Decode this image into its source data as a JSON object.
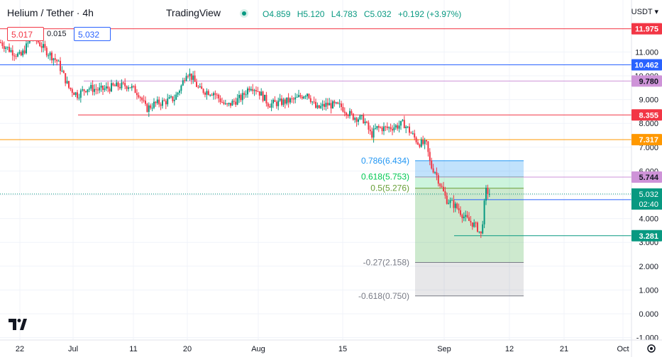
{
  "header": {
    "symbol": "Helium / Tether · 4h",
    "exchange": "TradingView",
    "status_color": "#089981",
    "open": "O4.859",
    "high": "H5.120",
    "low": "L4.783",
    "close": "C5.032",
    "change": "+0.192 (+3.97%)",
    "sell_price": "5.017",
    "spread": "0.015",
    "buy_price": "5.032"
  },
  "chart_data": {
    "type": "candlestick",
    "currency": "USDT",
    "x_ticks": [
      "22",
      "Jul",
      "11",
      "20",
      "Aug",
      "15",
      "Sep",
      "12",
      "21",
      "Oct"
    ],
    "y_ticks": [
      "-1.000",
      "0.000",
      "1.000",
      "2.000",
      "3.000",
      "4.000",
      "5.000",
      "6.000",
      "7.000",
      "8.000",
      "9.000",
      "10.000",
      "11.000"
    ],
    "ylim": [
      -1.25,
      12.5
    ],
    "horizontal_levels": [
      {
        "label": "11.975",
        "value": 11.975,
        "color": "#f23645"
      },
      {
        "label": "10.462",
        "value": 10.462,
        "color": "#2962ff"
      },
      {
        "label": "9.780",
        "value": 9.78,
        "color": "#ce93d8"
      },
      {
        "label": "8.355",
        "value": 8.355,
        "color": "#f23645"
      },
      {
        "label": "7.317",
        "value": 7.317,
        "color": "#ff9800"
      },
      {
        "label": "5.744",
        "value": 5.744,
        "color": "#ce93d8"
      },
      {
        "label": "4.795",
        "value": 4.795,
        "color": "#2962ff"
      },
      {
        "label": "3.281",
        "value": 3.281,
        "color": "#089981"
      }
    ],
    "current_price": {
      "label": "5.032",
      "value": 5.032,
      "countdown": "02:40",
      "color": "#089981"
    },
    "fibonacci": [
      {
        "label": "0.786(6.434)",
        "value": 6.434,
        "color": "#2196f3"
      },
      {
        "label": "0.618(5.753)",
        "value": 5.753,
        "color": "#00c853"
      },
      {
        "label": "0.5(5.276)",
        "value": 5.276,
        "color": "#689f38"
      },
      {
        "label": "-0.27(2.158)",
        "value": 2.158,
        "color": "#787b86"
      },
      {
        "label": "-0.618(0.750)",
        "value": 0.75,
        "color": "#787b86"
      }
    ],
    "price_path": [
      [
        0,
        11.4
      ],
      [
        12,
        11.1
      ],
      [
        28,
        10.8
      ],
      [
        45,
        11.7
      ],
      [
        62,
        11.1
      ],
      [
        80,
        10.6
      ],
      [
        96,
        9.5
      ],
      [
        108,
        9.2
      ],
      [
        122,
        9.5
      ],
      [
        140,
        9.4
      ],
      [
        160,
        9.55
      ],
      [
        180,
        9.6
      ],
      [
        195,
        9.25
      ],
      [
        205,
        8.6
      ],
      [
        215,
        8.8
      ],
      [
        230,
        8.9
      ],
      [
        245,
        9.05
      ],
      [
        255,
        9.6
      ],
      [
        262,
        10.2
      ],
      [
        270,
        9.9
      ],
      [
        280,
        9.4
      ],
      [
        300,
        9.3
      ],
      [
        318,
        8.7
      ],
      [
        328,
        8.9
      ],
      [
        340,
        9.1
      ],
      [
        352,
        9.6
      ],
      [
        362,
        9.4
      ],
      [
        378,
        8.8
      ],
      [
        398,
        8.9
      ],
      [
        415,
        9.0
      ],
      [
        432,
        9.3
      ],
      [
        445,
        8.6
      ],
      [
        460,
        8.8
      ],
      [
        480,
        8.7
      ],
      [
        495,
        8.3
      ],
      [
        512,
        8.15
      ],
      [
        522,
        7.5
      ],
      [
        530,
        7.8
      ],
      [
        545,
        7.8
      ],
      [
        560,
        7.9
      ],
      [
        568,
        8.0
      ],
      [
        578,
        7.6
      ],
      [
        588,
        7.2
      ],
      [
        600,
        7.1
      ],
      [
        606,
        6.2
      ],
      [
        612,
        6.0
      ],
      [
        620,
        5.4
      ],
      [
        628,
        4.8
      ],
      [
        636,
        4.65
      ],
      [
        645,
        4.4
      ],
      [
        655,
        4.0
      ],
      [
        665,
        3.8
      ],
      [
        672,
        3.6
      ],
      [
        677,
        3.3
      ],
      [
        682,
        4.7
      ],
      [
        686,
        5.6
      ],
      [
        690,
        5.03
      ]
    ]
  }
}
